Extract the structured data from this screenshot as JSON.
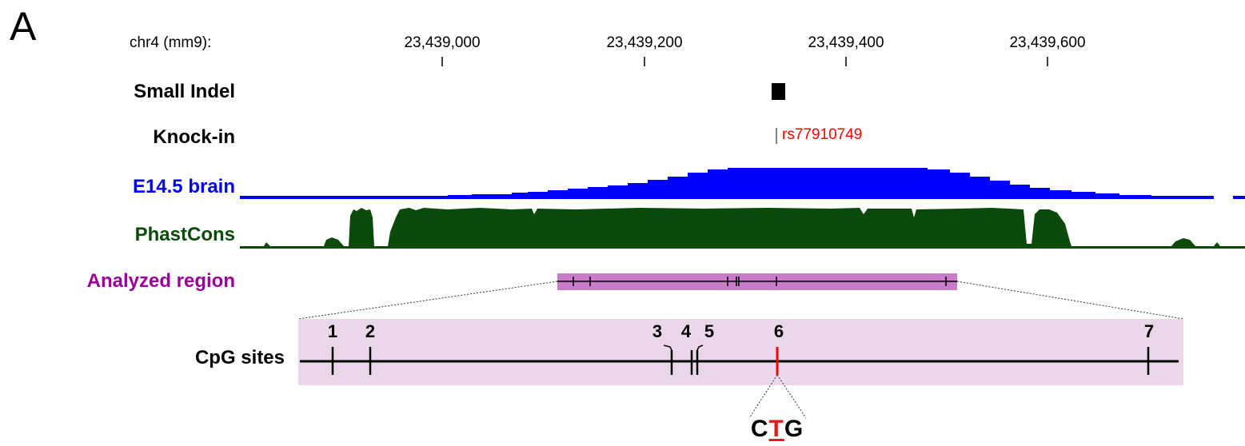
{
  "panel_letter": "A",
  "colors": {
    "blue_track": "#0000ff",
    "green_track": "#0b4a0b",
    "purple_label": "#990099",
    "region_fill": "#c77dca",
    "zoom_fill": "#ead7ea",
    "mutation_red": "#ff0000"
  },
  "browser": {
    "assembly_label": "chr4 (mm9):",
    "ticks": [
      "23,439,000",
      "23,439,200",
      "23,439,400",
      "23,439,600"
    ]
  },
  "tracks": {
    "small_indel": {
      "label": "Small Indel",
      "color": "#000000"
    },
    "knock_in": {
      "label": "Knock-in",
      "color": "#000000",
      "variant_id": "rs77910749"
    },
    "e145_brain": {
      "label": "E14.5 brain",
      "color": "#0000ff"
    },
    "phastcons": {
      "label": "PhastCons",
      "color": "#0b4a0b"
    },
    "analyzed_region": {
      "label": "Analyzed region",
      "color": "#990099"
    }
  },
  "cpg": {
    "label": "CpG sites",
    "sites": [
      "1",
      "2",
      "3",
      "4",
      "5",
      "6",
      "7"
    ],
    "highlighted_site": "6",
    "codon": {
      "before": "C",
      "mutated": "T",
      "after": "G"
    }
  }
}
